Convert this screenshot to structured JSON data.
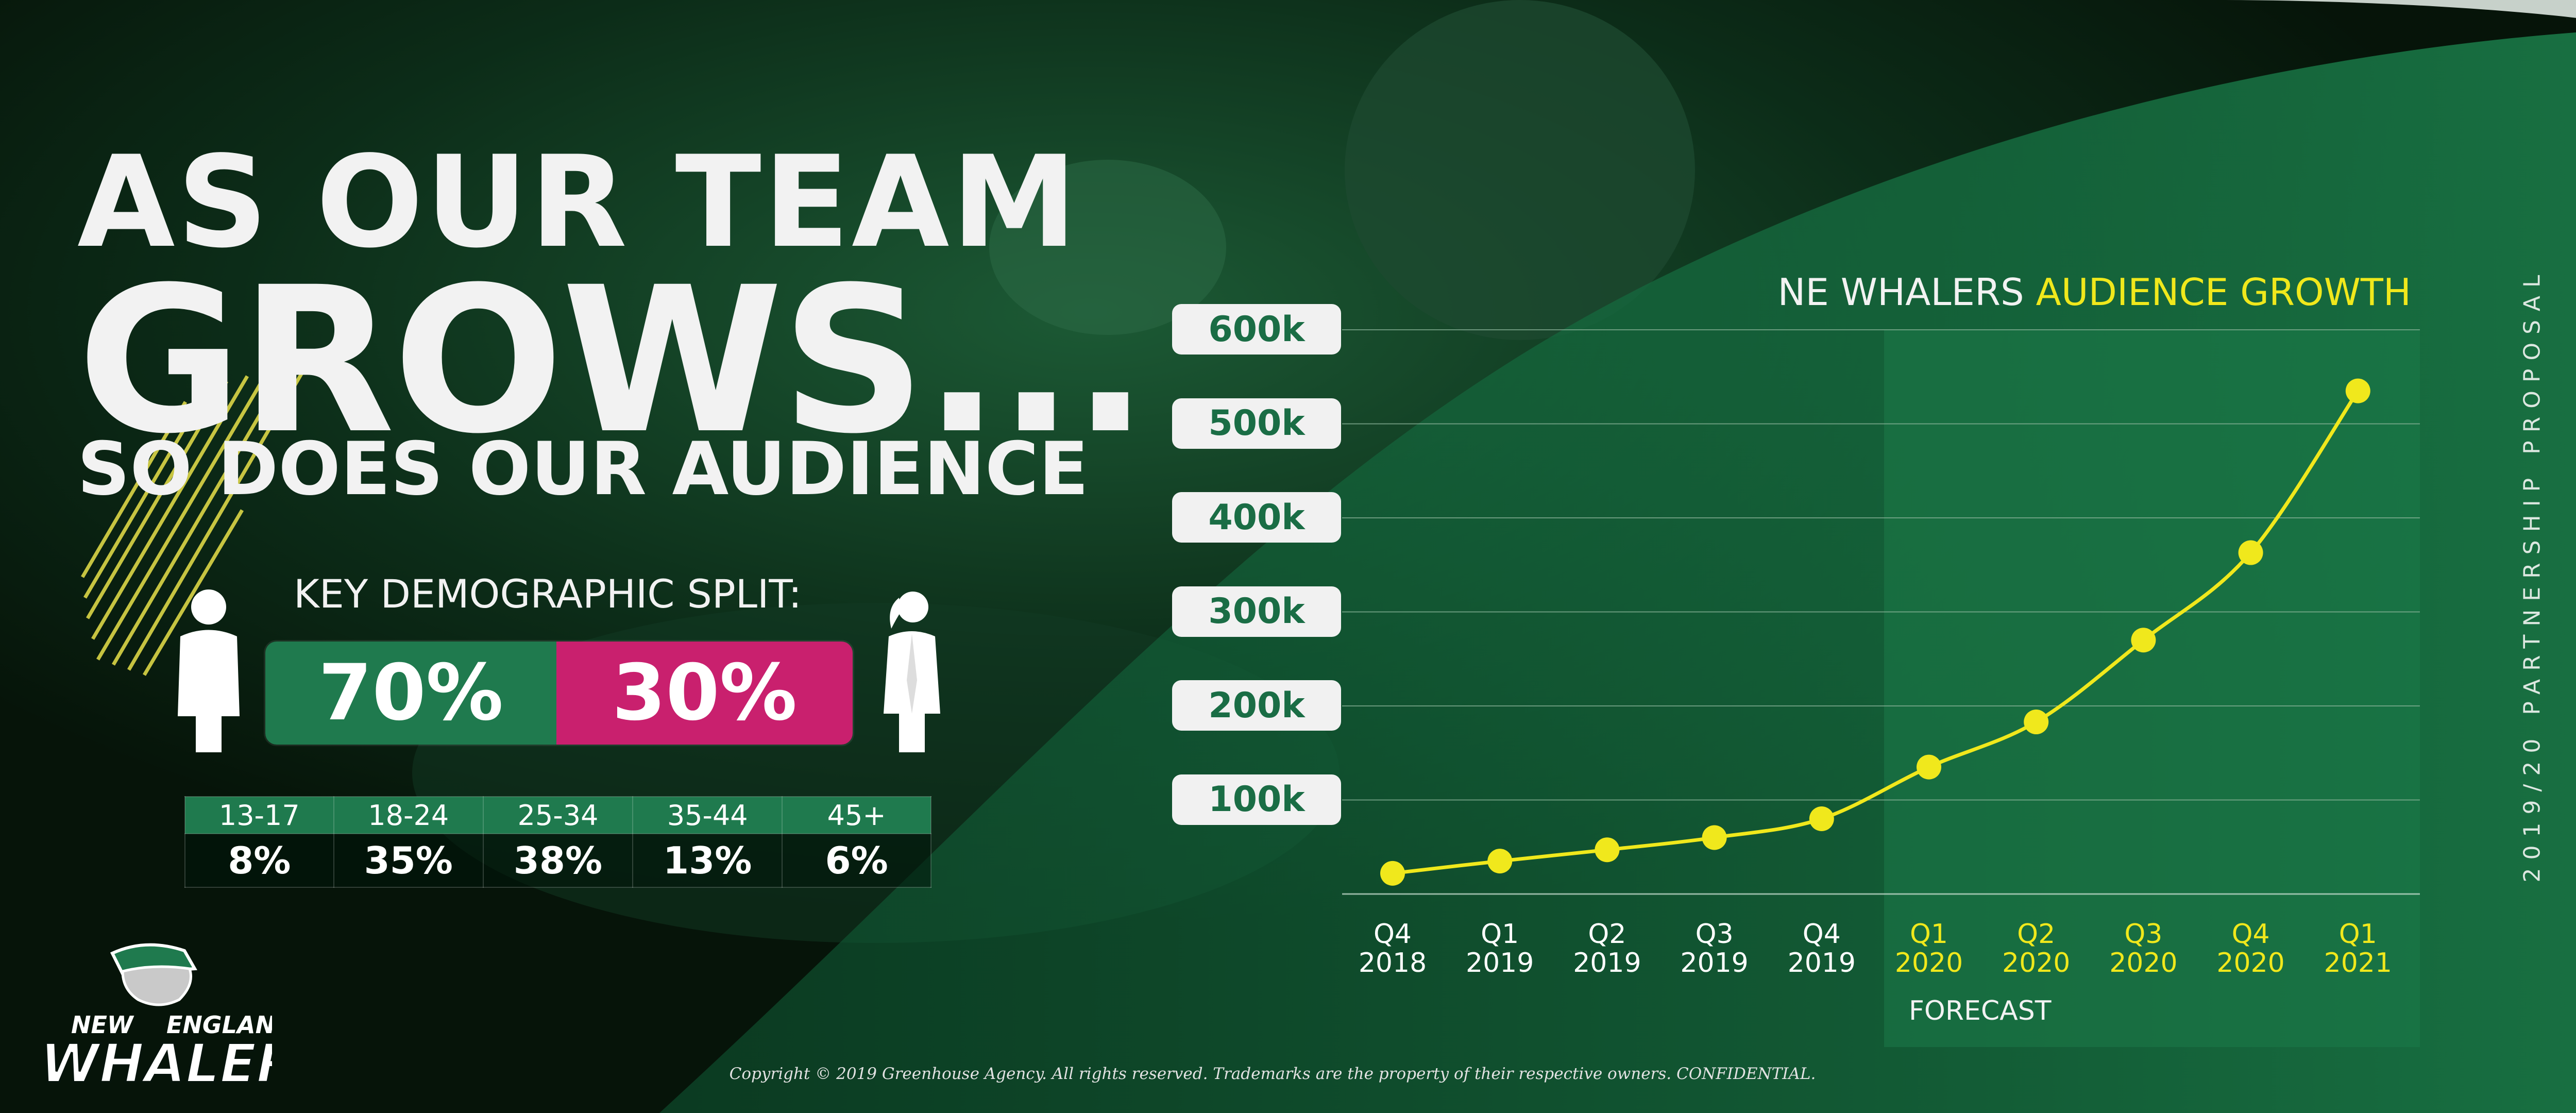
{
  "headline": {
    "line1": "AS OUR TEAM",
    "line2": "GROWS...",
    "line3": "SO DOES OUR AUDIENCE"
  },
  "demographics": {
    "title": "KEY DEMOGRAPHIC SPLIT:",
    "male_pct": "70%",
    "female_pct": "30%",
    "male_share": 0.7,
    "age_groups": [
      {
        "range": "13-17",
        "pct": "8%"
      },
      {
        "range": "18-24",
        "pct": "35%"
      },
      {
        "range": "25-34",
        "pct": "38%"
      },
      {
        "range": "35-44",
        "pct": "13%"
      },
      {
        "range": "45+",
        "pct": "6%"
      }
    ],
    "colors": {
      "male": "#1f7a4e",
      "female": "#c9206e"
    }
  },
  "chart_title": {
    "part1": "NE WHALERS ",
    "part2": "AUDIENCE GROWTH"
  },
  "chart_data": {
    "type": "line",
    "title": "NE WHALERS AUDIENCE GROWTH",
    "categories": [
      "Q4 2018",
      "Q1 2019",
      "Q2 2019",
      "Q3 2019",
      "Q4 2019",
      "Q1 2020",
      "Q2 2020",
      "Q3 2020",
      "Q4 2020",
      "Q1 2021"
    ],
    "values": [
      22000,
      35000,
      47000,
      60000,
      80000,
      135000,
      183000,
      270000,
      363000,
      535000
    ],
    "ylim": [
      0,
      600000
    ],
    "yticks": [
      "100k",
      "200k",
      "300k",
      "400k",
      "500k",
      "600k"
    ],
    "grid": true,
    "forecast_label": "FORECAST",
    "forecast_from_index": 5,
    "line_color": "#f0e81c",
    "accent_color": "#1a6d45"
  },
  "side_text": "2019/20 PARTNERSHIP PROPOSAL",
  "copyright": "Copyright © 2019 Greenhouse Agency. All rights reserved. Trademarks are the property of their respective owners. CONFIDENTIAL.",
  "logo": {
    "word1": "NEW",
    "word2": "ENGLAND",
    "word3": "WHALERS"
  }
}
